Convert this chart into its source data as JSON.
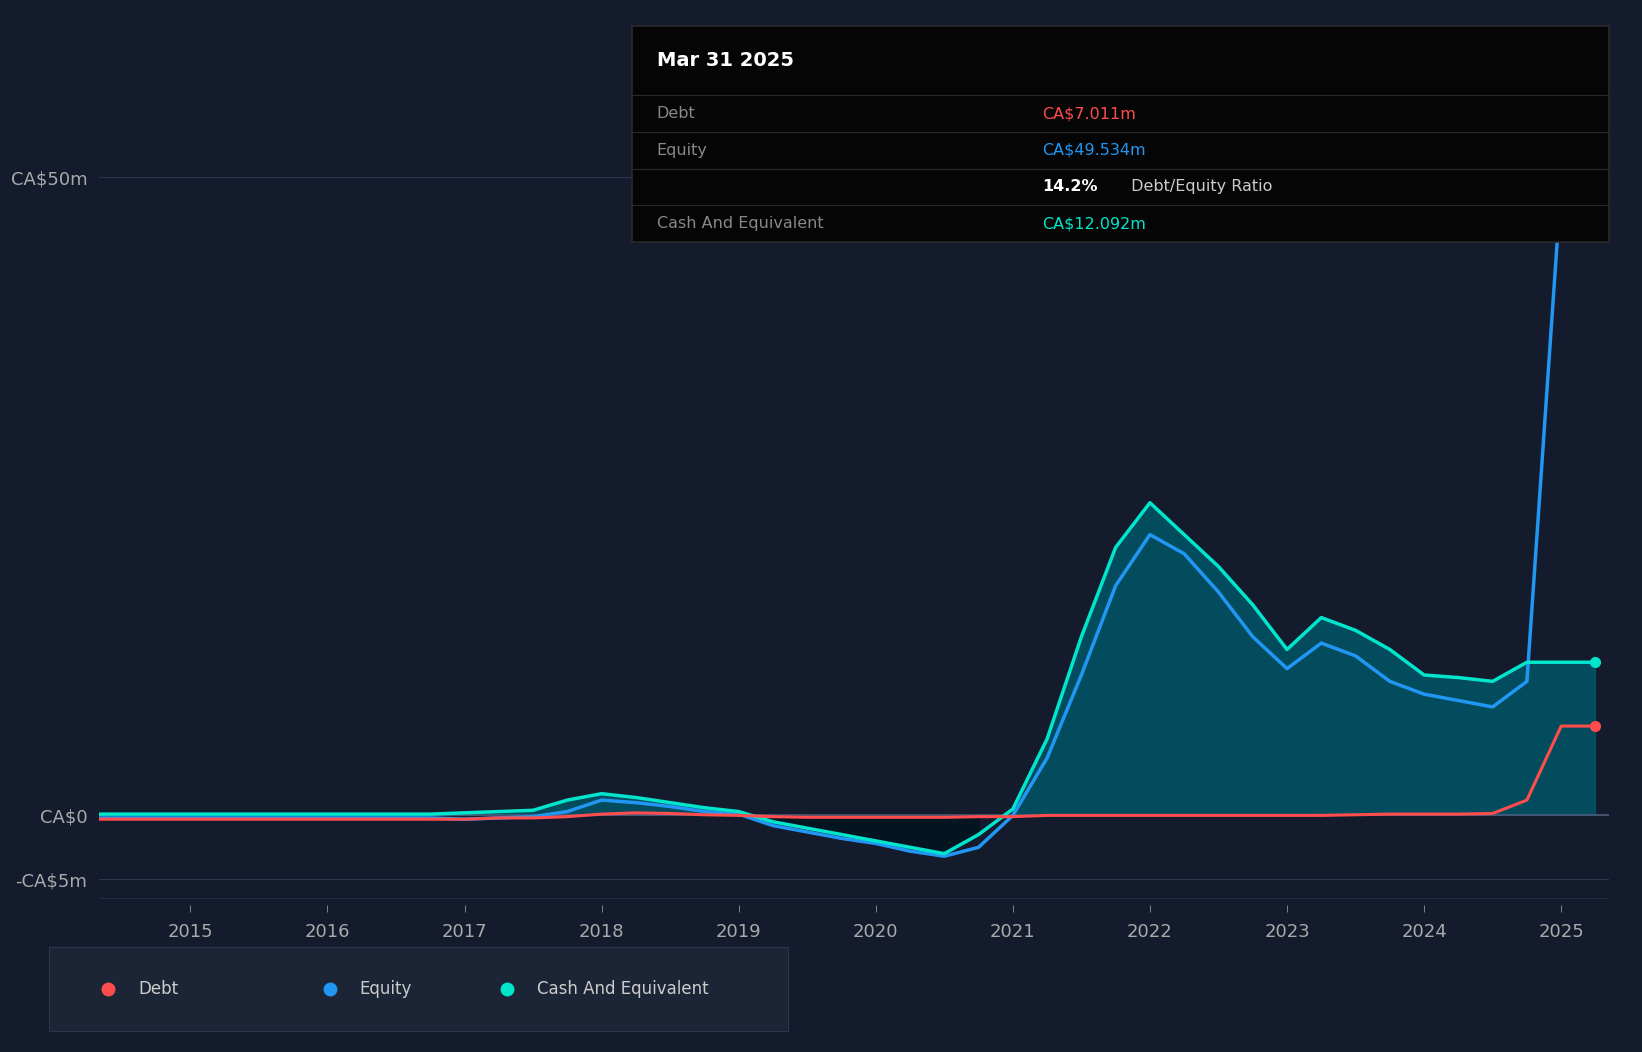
{
  "background_color": "#141b2d",
  "plot_bg_color": "#141b2d",
  "grid_color": "#2a3550",
  "debt_color": "#ff4d4d",
  "equity_color": "#2196f3",
  "cash_color": "#00e5cc",
  "fill_color_pos": "#005566",
  "fill_color_neg": "#001a22",
  "tooltip_bg": "#050505",
  "tooltip_title": "Mar 31 2025",
  "tooltip_debt_label": "Debt",
  "tooltip_debt_value": "CA$7.011m",
  "tooltip_equity_label": "Equity",
  "tooltip_equity_value": "CA$49.534m",
  "tooltip_ratio": "14.2% Debt/Equity Ratio",
  "tooltip_cash_label": "Cash And Equivalent",
  "tooltip_cash_value": "CA$12.092m",
  "legend_labels": [
    "Debt",
    "Equity",
    "Cash And Equivalent"
  ],
  "time_points": [
    2014.33,
    2014.5,
    2014.75,
    2015.0,
    2015.25,
    2015.5,
    2015.75,
    2016.0,
    2016.25,
    2016.5,
    2016.75,
    2017.0,
    2017.25,
    2017.5,
    2017.75,
    2018.0,
    2018.25,
    2018.5,
    2018.75,
    2019.0,
    2019.25,
    2019.5,
    2019.75,
    2020.0,
    2020.25,
    2020.5,
    2020.75,
    2021.0,
    2021.25,
    2021.5,
    2021.75,
    2022.0,
    2022.25,
    2022.5,
    2022.75,
    2023.0,
    2023.25,
    2023.5,
    2023.75,
    2024.0,
    2024.25,
    2024.5,
    2024.75,
    2025.0,
    2025.25
  ],
  "debt_values": [
    -0.3,
    -0.3,
    -0.3,
    -0.3,
    -0.3,
    -0.3,
    -0.3,
    -0.3,
    -0.3,
    -0.3,
    -0.3,
    -0.3,
    -0.2,
    -0.2,
    -0.1,
    0.1,
    0.2,
    0.15,
    0.05,
    0.0,
    -0.1,
    -0.15,
    -0.15,
    -0.15,
    -0.15,
    -0.15,
    -0.1,
    -0.1,
    0.0,
    0.0,
    0.0,
    0.0,
    0.0,
    0.0,
    0.0,
    0.0,
    0.0,
    0.05,
    0.1,
    0.1,
    0.1,
    0.15,
    1.2,
    7.0,
    7.0
  ],
  "equity_values": [
    -0.2,
    -0.2,
    -0.2,
    -0.2,
    -0.2,
    -0.2,
    -0.2,
    -0.2,
    -0.2,
    -0.2,
    -0.2,
    -0.3,
    -0.2,
    -0.1,
    0.3,
    1.2,
    1.0,
    0.7,
    0.3,
    0.1,
    -0.8,
    -1.3,
    -1.8,
    -2.2,
    -2.8,
    -3.2,
    -2.5,
    0.0,
    4.5,
    11.0,
    18.0,
    22.0,
    20.5,
    17.5,
    14.0,
    11.5,
    13.5,
    12.5,
    10.5,
    9.5,
    9.0,
    8.5,
    10.5,
    49.5,
    49.5
  ],
  "cash_values": [
    0.1,
    0.1,
    0.1,
    0.1,
    0.1,
    0.1,
    0.1,
    0.1,
    0.1,
    0.1,
    0.1,
    0.2,
    0.3,
    0.4,
    1.2,
    1.7,
    1.4,
    1.0,
    0.6,
    0.3,
    -0.5,
    -1.0,
    -1.5,
    -2.0,
    -2.5,
    -3.0,
    -1.5,
    0.5,
    6.0,
    14.0,
    21.0,
    24.5,
    22.0,
    19.5,
    16.5,
    13.0,
    15.5,
    14.5,
    13.0,
    11.0,
    10.8,
    10.5,
    12.0,
    12.0,
    12.0
  ],
  "yticks": [
    -5,
    0,
    50
  ],
  "ytick_labels": [
    "-CA$5m",
    "CA$0",
    "CA$50m"
  ],
  "xtick_years": [
    2015,
    2016,
    2017,
    2018,
    2019,
    2020,
    2021,
    2022,
    2023,
    2024,
    2025
  ],
  "xlim": [
    2014.33,
    2025.35
  ],
  "ylim": [
    -7,
    54
  ]
}
